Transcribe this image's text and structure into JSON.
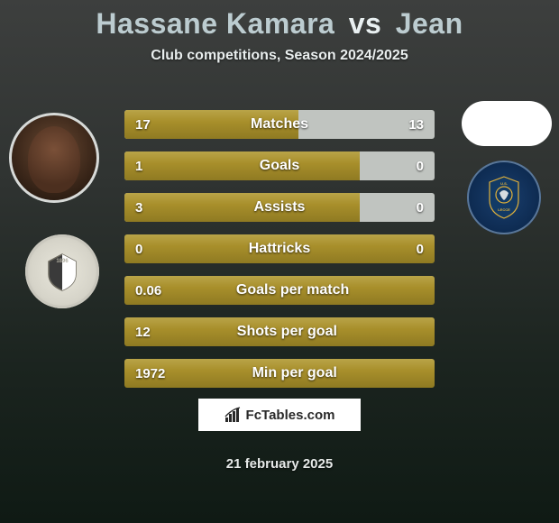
{
  "title_parts": {
    "p1": "Hassane Kamara",
    "vs": "vs",
    "p2": "Jean"
  },
  "title_colors": {
    "p1": "#bcccd0",
    "vs": "#e9f0f1",
    "p2": "#bcccd0"
  },
  "subtitle": "Club competitions, Season 2024/2025",
  "brand": "FcTables.com",
  "date": "21 february 2025",
  "colors": {
    "bar_olive": "#a88f2b",
    "bar_olive_light": "#b9a448",
    "bar_olive_dark": "#8f7a22",
    "bar_bg": "#c0c4c0",
    "text": "#ffffff"
  },
  "bars": [
    {
      "label": "Matches",
      "left": "17",
      "right": "13",
      "olive_pct": 56,
      "full_olive": false
    },
    {
      "label": "Goals",
      "left": "1",
      "right": "0",
      "olive_pct": 76,
      "full_olive": false
    },
    {
      "label": "Assists",
      "left": "3",
      "right": "0",
      "olive_pct": 76,
      "full_olive": false
    },
    {
      "label": "Hattricks",
      "left": "0",
      "right": "0",
      "olive_pct": 100,
      "full_olive": true
    },
    {
      "label": "Goals per match",
      "left": "0.06",
      "right": "",
      "olive_pct": 100,
      "full_olive": true
    },
    {
      "label": "Shots per goal",
      "left": "12",
      "right": "",
      "olive_pct": 100,
      "full_olive": true
    },
    {
      "label": "Min per goal",
      "left": "1972",
      "right": "",
      "olive_pct": 100,
      "full_olive": true
    }
  ]
}
